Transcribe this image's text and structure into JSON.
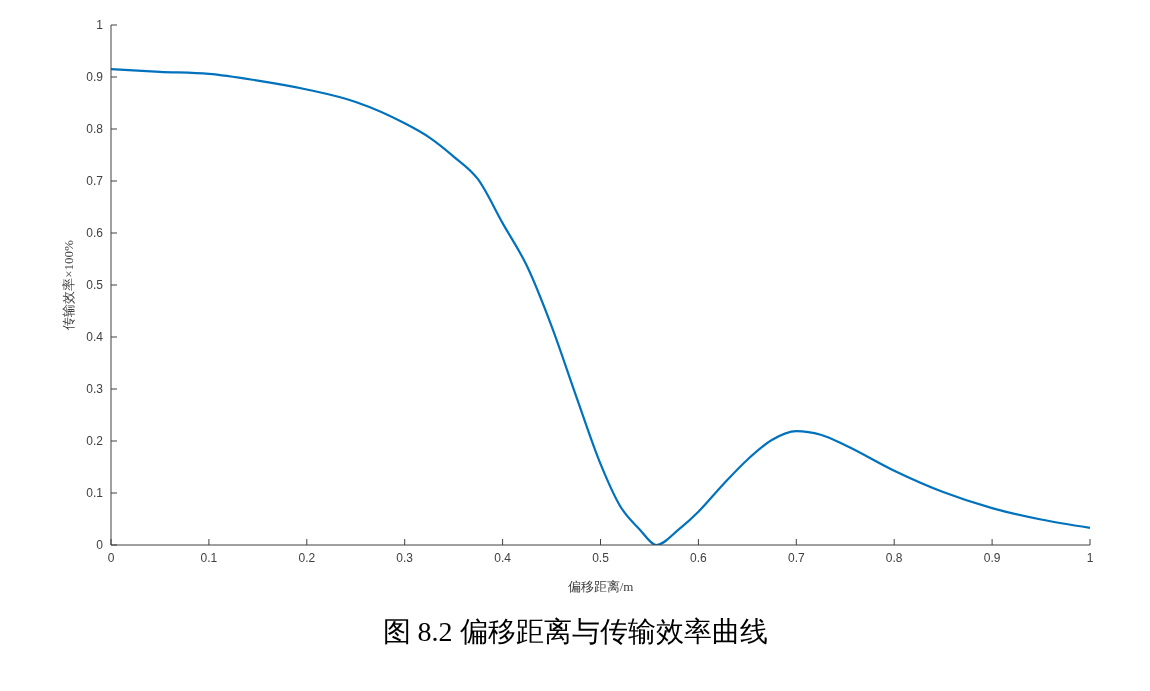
{
  "chart_data": {
    "type": "line",
    "title": "图 8.2  偏移距离与传输效率曲线",
    "xlabel": "偏移距离/m",
    "ylabel": "传输效率×100%",
    "x": [
      0,
      0.05,
      0.1,
      0.15,
      0.2,
      0.25,
      0.3,
      0.325,
      0.35,
      0.375,
      0.4,
      0.425,
      0.45,
      0.475,
      0.5,
      0.52,
      0.54,
      0.557,
      0.58,
      0.6,
      0.625,
      0.65,
      0.675,
      0.7,
      0.725,
      0.75,
      0.8,
      0.85,
      0.9,
      0.95,
      1.0
    ],
    "series": [
      {
        "color": "#0072bd",
        "values": [
          0.915,
          0.91,
          0.906,
          0.893,
          0.876,
          0.852,
          0.811,
          0.784,
          0.747,
          0.703,
          0.619,
          0.536,
          0.421,
          0.287,
          0.156,
          0.075,
          0.03,
          0,
          0.03,
          0.064,
          0.116,
          0.164,
          0.202,
          0.219,
          0.212,
          0.192,
          0.143,
          0.102,
          0.071,
          0.049,
          0.033
        ]
      }
    ],
    "xlim": [
      0,
      1
    ],
    "xticks": [
      0,
      0.1,
      0.2,
      0.3,
      0.4,
      0.5,
      0.6,
      0.7,
      0.8,
      0.9,
      1
    ],
    "ylim": [
      0,
      1
    ],
    "yticks": [
      0,
      0.1,
      0.2,
      0.3,
      0.4,
      0.5,
      0.6,
      0.7,
      0.8,
      0.9,
      1
    ],
    "grid": false,
    "legend": false,
    "marker": "none",
    "line_style": "solid"
  }
}
